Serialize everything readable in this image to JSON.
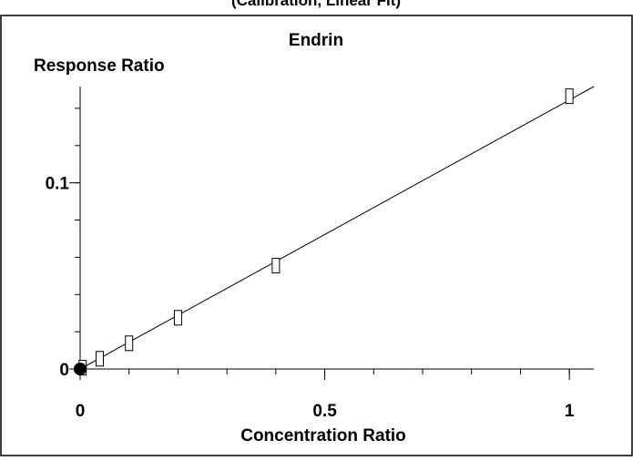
{
  "chart_data": {
    "type": "scatter",
    "title": "Endrin",
    "top_caption": "(Calibration, Linear Fit)",
    "xlabel": "Concentration Ratio",
    "ylabel": "Response Ratio",
    "xlim": [
      0,
      1.05
    ],
    "ylim": [
      0,
      0.1517
    ],
    "xticks": [
      {
        "value": 0,
        "label": "0"
      },
      {
        "value": 0.5,
        "label": "0.5"
      },
      {
        "value": 1,
        "label": "1"
      }
    ],
    "yticks": [
      {
        "value": 0,
        "label": "0"
      },
      {
        "value": 0.1,
        "label": "0.1"
      }
    ],
    "x_minor_step": 0.1,
    "y_minor_step": 0.02,
    "points": [
      {
        "x": 0.005,
        "y": 0.0007
      },
      {
        "x": 0.04,
        "y": 0.0055
      },
      {
        "x": 0.1,
        "y": 0.0138
      },
      {
        "x": 0.2,
        "y": 0.0275
      },
      {
        "x": 0.4,
        "y": 0.0555
      },
      {
        "x": 1.0,
        "y": 0.1465
      }
    ],
    "origin_marker": {
      "x": 0,
      "y": 0
    },
    "fit_line": {
      "x": [
        0,
        1.05
      ],
      "y": [
        0,
        0.1517
      ]
    },
    "grid": false,
    "line_color": "#000000",
    "marker_color": "#000000"
  }
}
